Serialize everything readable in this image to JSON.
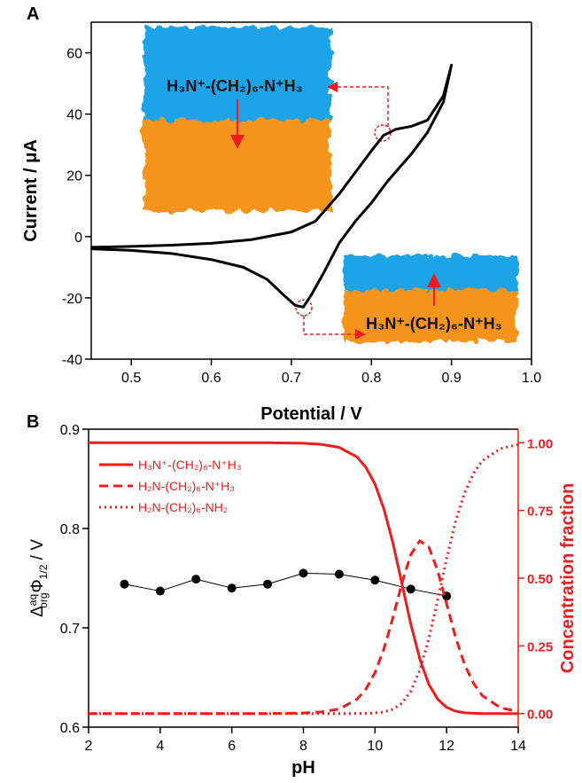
{
  "chart_data": [
    {
      "type": "line",
      "panel": "A",
      "xlabel": "Potential / V",
      "ylabel": "Current / μA",
      "xlim": [
        0.45,
        1.0
      ],
      "ylim": [
        -40,
        70
      ],
      "xticks": [
        0.5,
        0.6,
        0.7,
        0.8,
        0.9,
        {
          "value": 1,
          "label": "1.0"
        }
      ],
      "yticks": [
        -40,
        -20,
        0,
        20,
        40,
        60
      ],
      "annotations": [
        "H₃N⁺-(CH₂)₆-N⁺H₃",
        "H₃N⁺-(CH₂)₆-N⁺H₃"
      ],
      "series": [
        {
          "color": "#000000",
          "x": [
            0.45,
            0.5,
            0.55,
            0.6,
            0.65,
            0.7,
            0.73,
            0.76,
            0.78,
            0.8,
            0.815,
            0.83,
            0.85,
            0.87,
            0.89,
            0.9,
            0.89,
            0.87,
            0.85,
            0.82,
            0.8,
            0.78,
            0.76,
            0.74,
            0.725,
            0.715,
            0.705,
            0.69,
            0.67,
            0.64,
            0.6,
            0.55,
            0.5,
            0.45
          ],
          "values": [
            -3.5,
            -3.2,
            -2.8,
            -2.2,
            -1,
            1.5,
            5,
            14,
            21,
            28,
            33,
            35,
            36,
            38,
            46,
            56,
            44,
            34,
            27,
            18,
            11,
            5,
            -2,
            -12,
            -19,
            -23,
            -22.5,
            -19,
            -14,
            -10,
            -7.5,
            -5.5,
            -4.5,
            -4
          ]
        }
      ]
    },
    {
      "type": "line",
      "panel": "B",
      "xlabel": "pH",
      "ylabel_parts": [
        "Δ",
        "aq",
        "org",
        "Φ",
        "1/2",
        " / V"
      ],
      "y2label": "Concentration fraction",
      "y2color": "#ee1c1c",
      "xlim": [
        2,
        14
      ],
      "ylim": [
        0.6,
        0.9
      ],
      "y2lim": [
        -0.05,
        1.05
      ],
      "xticks": [
        2,
        4,
        6,
        8,
        10,
        12,
        14
      ],
      "yticks": [
        0.6,
        0.7,
        0.8,
        0.9
      ],
      "y2ticks": [
        {
          "value": 0,
          "label": "0.00"
        },
        {
          "value": 0.25,
          "label": "0.25"
        },
        {
          "value": 0.5,
          "label": "0.50"
        },
        {
          "value": 0.75,
          "label": "0.75"
        },
        {
          "value": 1,
          "label": "1.00"
        }
      ],
      "legend": "upper left",
      "series": [
        {
          "color": "#000000",
          "marker": "circle",
          "x": [
            3,
            4,
            5,
            6,
            7,
            8,
            9,
            10,
            11,
            12
          ],
          "values": [
            0.744,
            0.737,
            0.749,
            0.74,
            0.744,
            0.755,
            0.754,
            0.748,
            0.739,
            0.732
          ]
        },
        {
          "name": "H₃N⁺-(CH₂)₆-N⁺H₃",
          "color": "#ee1c1c",
          "axis": "y2",
          "dash": "solid",
          "x": [
            2,
            4,
            6,
            7,
            8,
            8.5,
            9,
            9.5,
            9.75,
            10,
            10.25,
            10.5,
            10.75,
            11,
            11.25,
            11.5,
            11.75,
            12,
            12.25,
            12.5,
            12.75,
            13,
            13.5,
            14
          ],
          "values": [
            1,
            1,
            1,
            1,
            0.998,
            0.994,
            0.983,
            0.947,
            0.908,
            0.847,
            0.755,
            0.63,
            0.481,
            0.33,
            0.202,
            0.109,
            0.053,
            0.023,
            0.009,
            0.003,
            0.001,
            0,
            0,
            0
          ]
        },
        {
          "name": "H₂N-(CH₂)₆-N⁺H₃",
          "color": "#ee1c1c",
          "axis": "y2",
          "dash": "dashed",
          "x": [
            2,
            4,
            6,
            7,
            8,
            8.5,
            9,
            9.5,
            9.75,
            10,
            10.25,
            10.5,
            10.75,
            11,
            11.25,
            11.5,
            11.75,
            12,
            12.25,
            12.5,
            12.75,
            13,
            13.5,
            14
          ],
          "values": [
            0,
            0,
            0,
            0,
            0.002,
            0.006,
            0.017,
            0.053,
            0.091,
            0.151,
            0.239,
            0.354,
            0.481,
            0.587,
            0.638,
            0.616,
            0.528,
            0.405,
            0.282,
            0.182,
            0.112,
            0.066,
            0.022,
            0.007
          ]
        },
        {
          "name": "H₂N-(CH₂)₆-NH₂",
          "color": "#ee1c1c",
          "axis": "y2",
          "dash": "dotted",
          "x": [
            2,
            4,
            6,
            7,
            8,
            8.5,
            9,
            9.5,
            9.75,
            10,
            10.25,
            10.5,
            10.75,
            11,
            11.25,
            11.5,
            11.75,
            12,
            12.25,
            12.5,
            12.75,
            13,
            13.5,
            14
          ],
          "values": [
            0,
            0,
            0,
            0,
            0,
            0,
            0,
            0.0002,
            0.0007,
            0.002,
            0.006,
            0.016,
            0.038,
            0.083,
            0.16,
            0.275,
            0.419,
            0.572,
            0.709,
            0.814,
            0.887,
            0.934,
            0.978,
            0.993
          ]
        }
      ]
    }
  ]
}
